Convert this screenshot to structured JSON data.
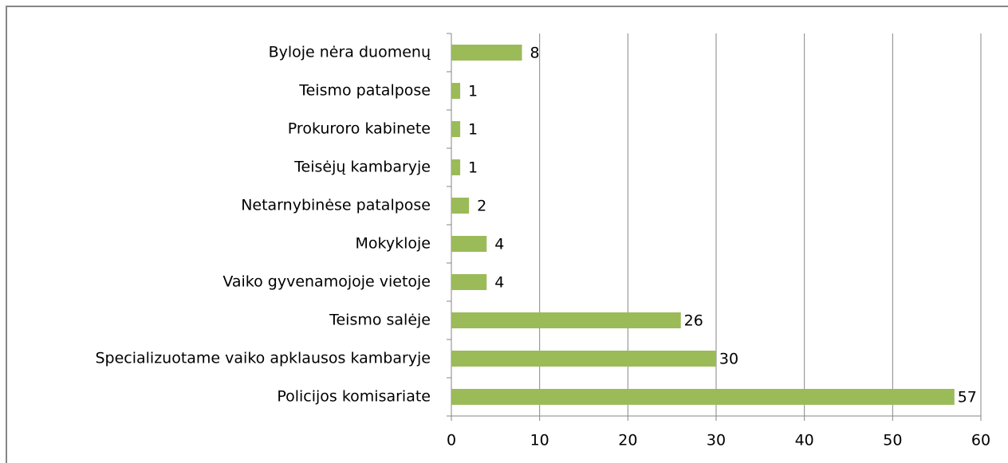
{
  "chart_data": {
    "type": "bar",
    "orientation": "horizontal",
    "categories": [
      "Byloje nėra duomenų",
      "Teismo patalpose",
      "Prokuroro kabinete",
      "Teisėjų kambaryje",
      "Netarnybinėse patalpose",
      "Mokykloje",
      "Vaiko gyvenamojoje vietoje",
      "Teismo salėje",
      "Specializuotame vaiko apklausos kambaryje",
      "Policijos komisariate"
    ],
    "values": [
      8,
      1,
      1,
      1,
      2,
      4,
      4,
      26,
      30,
      57
    ],
    "color": "#9bbb59",
    "xlim": [
      0,
      60
    ],
    "xticks": [
      0,
      10,
      20,
      30,
      40,
      50,
      60
    ],
    "grid": true
  }
}
